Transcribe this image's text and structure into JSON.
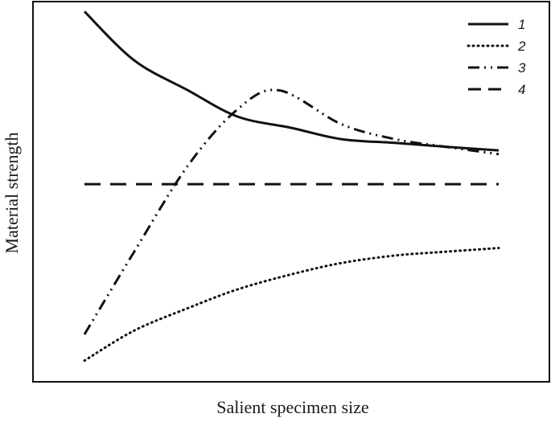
{
  "chart_data": {
    "type": "line",
    "title": "",
    "xlabel": "Salient specimen size",
    "ylabel": "Material strength",
    "xlim": [
      0,
      1
    ],
    "ylim": [
      0,
      1
    ],
    "grid": false,
    "ticks": false,
    "legend_position": "top-right",
    "series": [
      {
        "name": "1",
        "style": "solid",
        "x": [
          0.0,
          0.12,
          0.25,
          0.37,
          0.5,
          0.62,
          0.75,
          0.87,
          1.0
        ],
        "y": [
          0.98,
          0.85,
          0.77,
          0.7,
          0.67,
          0.64,
          0.63,
          0.62,
          0.61
        ]
      },
      {
        "name": "2",
        "style": "dotted",
        "x": [
          0.0,
          0.12,
          0.25,
          0.37,
          0.5,
          0.62,
          0.75,
          0.87,
          1.0
        ],
        "y": [
          0.05,
          0.13,
          0.19,
          0.24,
          0.28,
          0.31,
          0.33,
          0.34,
          0.35
        ]
      },
      {
        "name": "3",
        "style": "dash-dot-dot",
        "x": [
          0.0,
          0.12,
          0.25,
          0.37,
          0.47,
          0.62,
          0.75,
          0.87,
          1.0
        ],
        "y": [
          0.12,
          0.34,
          0.57,
          0.72,
          0.77,
          0.68,
          0.64,
          0.62,
          0.6
        ]
      },
      {
        "name": "4",
        "style": "dashed",
        "x": [
          0.0,
          1.0
        ],
        "y": [
          0.52,
          0.52
        ]
      }
    ]
  }
}
